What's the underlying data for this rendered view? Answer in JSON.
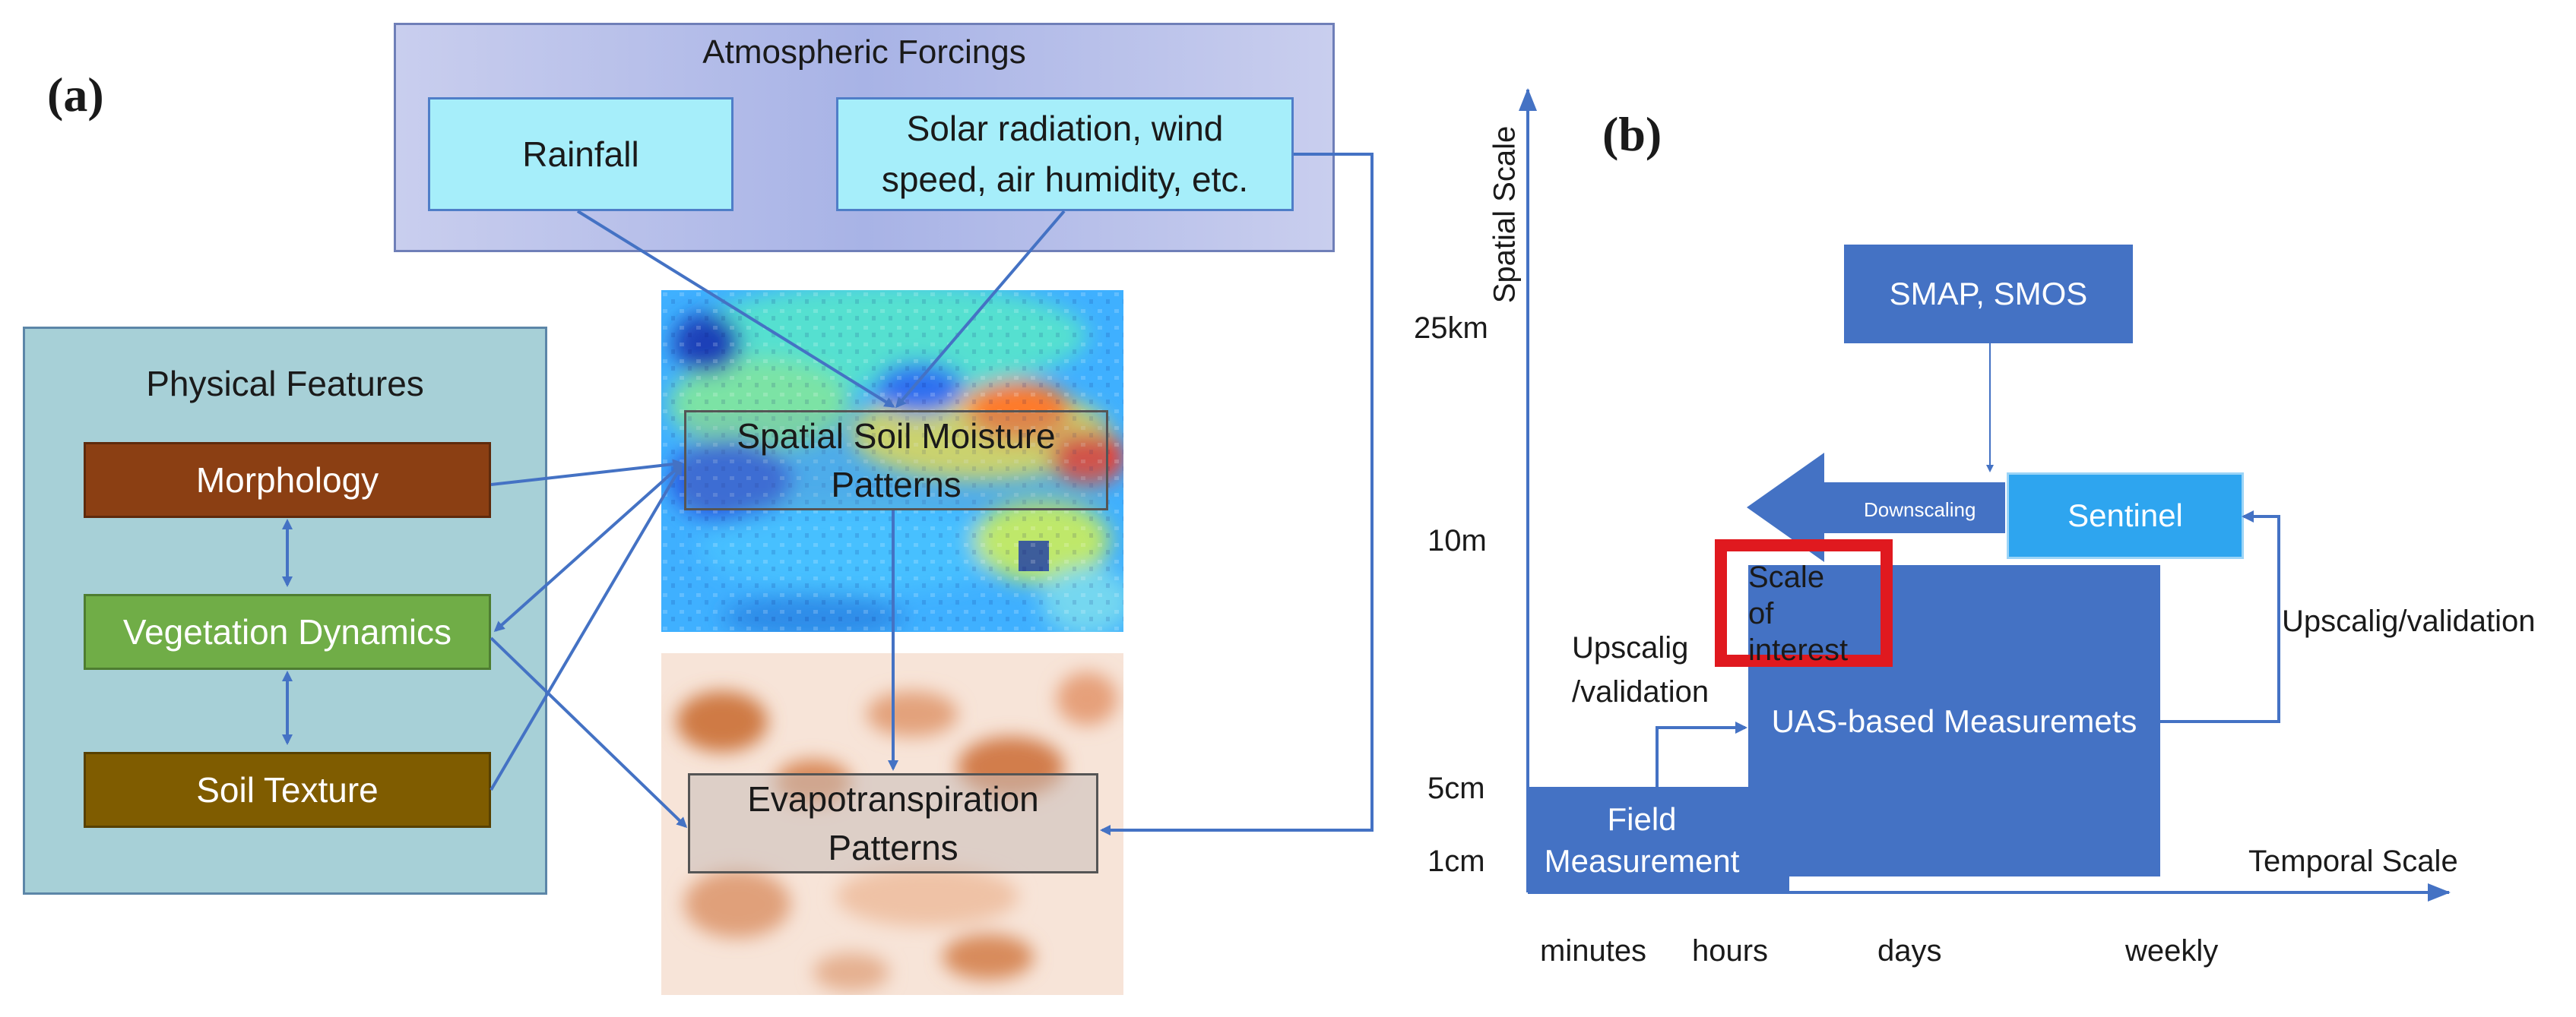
{
  "panel_a": {
    "label": "(a)",
    "atmospheric_forcings": {
      "title": "Atmospheric Forcings",
      "rainfall": "Rainfall",
      "other_line1": "Solar radiation, wind",
      "other_line2": "speed, air humidity, etc."
    },
    "physical_features": {
      "title": "Physical Features",
      "morphology": "Morphology",
      "vegetation": "Vegetation Dynamics",
      "soil_texture": "Soil Texture"
    },
    "soil_moisture": {
      "line1": "Spatial Soil Moisture",
      "line2": "Patterns"
    },
    "evapotranspiration": {
      "line1": "Evapotranspiration",
      "line2": "Patterns"
    },
    "colors": {
      "morphology": "#8b3f13",
      "vegetation": "#70ad47",
      "soil_texture": "#7f5c00",
      "arrow": "#4472c4"
    }
  },
  "panel_b": {
    "label": "(b)",
    "y_axis_title": "Spatial Scale",
    "x_axis_title": "Temporal Scale",
    "y_ticks": [
      "25km",
      "10m",
      "5cm",
      "1cm"
    ],
    "x_ticks": [
      "minutes",
      "hours",
      "days",
      "weekly"
    ],
    "smap": "SMAP, SMOS",
    "sentinel": "Sentinel",
    "downscaling": "Downscaling",
    "scale_of_interest": {
      "line1": "Scale of",
      "line2": "interest"
    },
    "uas": "UAS-based Measuremets",
    "field": {
      "line1": "Field",
      "line2": "Measurement"
    },
    "upscaling_left": {
      "line1": "Upscalig",
      "line2": "/validation"
    },
    "upscaling_right": "Upscalig/validation",
    "colors": {
      "box": "#4472c4",
      "sentinel": "#2ea5ef",
      "highlight": "#e0191f"
    }
  }
}
